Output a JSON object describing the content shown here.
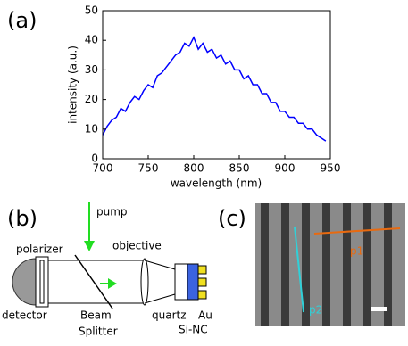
{
  "chart_data": {
    "type": "line",
    "label": "(a)",
    "xlabel": "wavelength (nm)",
    "ylabel": "intensity (a.u.)",
    "x": [
      700,
      705,
      710,
      715,
      720,
      725,
      730,
      735,
      740,
      745,
      750,
      755,
      760,
      765,
      770,
      775,
      780,
      785,
      790,
      795,
      800,
      805,
      810,
      815,
      820,
      825,
      830,
      835,
      840,
      845,
      850,
      855,
      860,
      865,
      870,
      875,
      880,
      885,
      890,
      895,
      900,
      905,
      910,
      915,
      920,
      925,
      930,
      935,
      940,
      945
    ],
    "values": [
      8,
      11,
      13,
      14,
      17,
      16,
      19,
      21,
      20,
      23,
      25,
      24,
      28,
      29,
      31,
      33,
      35,
      36,
      39,
      38,
      41,
      37,
      39,
      36,
      37,
      34,
      35,
      32,
      33,
      30,
      30,
      27,
      28,
      25,
      25,
      22,
      22,
      19,
      19,
      16,
      16,
      14,
      14,
      12,
      12,
      10,
      10,
      8,
      7,
      6
    ],
    "color": "#0000ff",
    "xlim": [
      700,
      950
    ],
    "xticks": [
      700,
      750,
      800,
      850,
      900,
      950
    ],
    "ylim": [
      0,
      50
    ],
    "yticks": [
      0,
      10,
      20,
      30,
      40,
      50
    ]
  },
  "diagram": {
    "label": "(b)",
    "nodes": [
      {
        "label": "pump"
      },
      {
        "label": "polarizer"
      },
      {
        "label": "objective"
      },
      {
        "label": "detector"
      },
      {
        "label": "Beam"
      },
      {
        "label": "Splitter"
      },
      {
        "label": "quartz"
      },
      {
        "label": "Au"
      },
      {
        "label": "Si-NC"
      }
    ]
  },
  "image": {
    "label": "(c)",
    "annotations": [
      "p1",
      "p2"
    ]
  }
}
